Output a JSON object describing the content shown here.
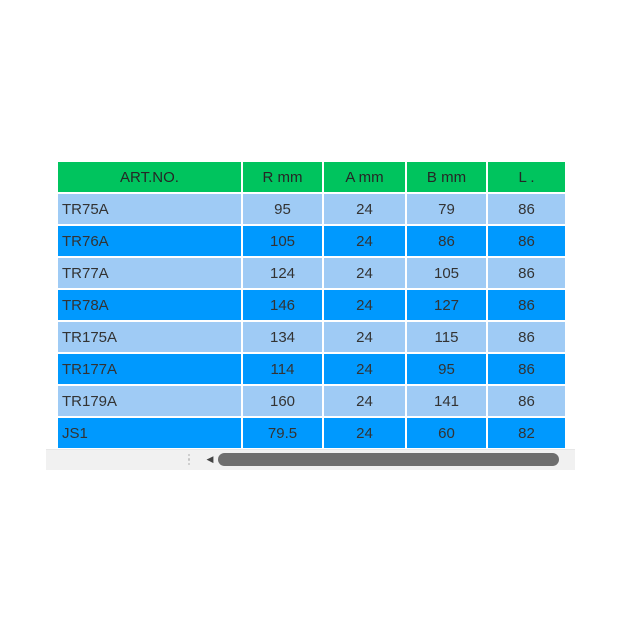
{
  "table": {
    "columns": [
      {
        "key": "art-no",
        "label": "ART.NO."
      },
      {
        "key": "r-mm",
        "label": "R mm"
      },
      {
        "key": "a-mm",
        "label": "A mm"
      },
      {
        "key": "b-mm",
        "label": "B mm"
      },
      {
        "key": "l",
        "label": "L ."
      }
    ],
    "rows": [
      [
        "TR75A",
        "95",
        "24",
        "79",
        "86"
      ],
      [
        "TR76A",
        "105",
        "24",
        "86",
        "86"
      ],
      [
        "TR77A",
        "124",
        "24",
        "105",
        "86"
      ],
      [
        "TR78A",
        "146",
        "24",
        "127",
        "86"
      ],
      [
        "TR175A",
        "134",
        "24",
        "115",
        "86"
      ],
      [
        "TR177A",
        "114",
        "24",
        "95",
        "86"
      ],
      [
        "TR179A",
        "160",
        "24",
        "141",
        "86"
      ],
      [
        "JS1",
        "79.5",
        "24",
        "60",
        "82"
      ]
    ]
  },
  "scrollbar": {
    "left_arrow_glyph": "◀"
  },
  "colors": {
    "header_green": "#00C45E",
    "row_light": "#9FCBF5",
    "row_dark": "#0099FE",
    "text_dark": "#333333",
    "scrollbar_track": "#F1F1F1",
    "scrollbar_thumb": "#6E6E6E",
    "arrow_gray": "#444444",
    "grip_dots": "#C4C4C4"
  }
}
